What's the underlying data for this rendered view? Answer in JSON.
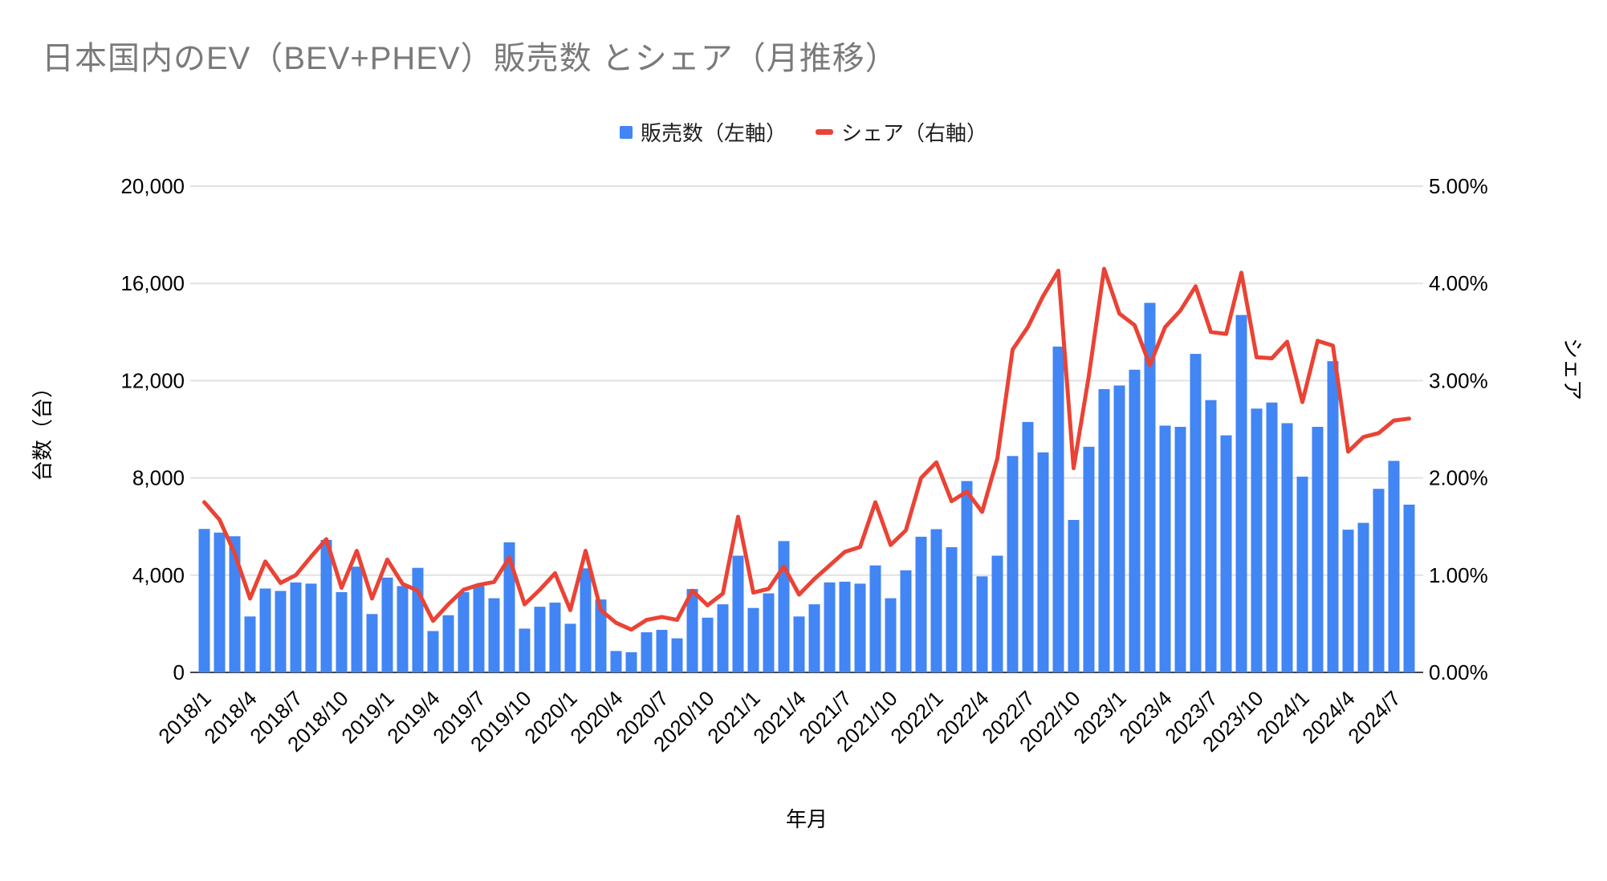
{
  "title": "日本国内のEV（BEV+PHEV）販売数 とシェア（月推移）",
  "legend": {
    "sales_label": "販売数（左軸）",
    "share_label": "シェア（右軸）"
  },
  "chart_data": {
    "type": "combo",
    "grid": true,
    "background": "#ffffff",
    "title": "日本国内のEV（BEV+PHEV）販売数 とシェア（月推移）",
    "x_axis": {
      "title": "年月",
      "tick_every": 3
    },
    "left_axis": {
      "title": "台数（台）",
      "min": 0,
      "max": 20000,
      "step": 4000,
      "ticks": [
        "0",
        "4,000",
        "8,000",
        "12,000",
        "16,000",
        "20,000"
      ]
    },
    "right_axis": {
      "title": "シェア",
      "min": 0,
      "max": 5,
      "step": 1,
      "ticks": [
        "0.00%",
        "1.00%",
        "2.00%",
        "3.00%",
        "4.00%",
        "5.00%"
      ]
    },
    "categories": [
      "2018/1",
      "2018/2",
      "2018/3",
      "2018/4",
      "2018/5",
      "2018/6",
      "2018/7",
      "2018/8",
      "2018/9",
      "2018/10",
      "2018/11",
      "2018/12",
      "2019/1",
      "2019/2",
      "2019/3",
      "2019/4",
      "2019/5",
      "2019/6",
      "2019/7",
      "2019/8",
      "2019/9",
      "2019/10",
      "2019/11",
      "2019/12",
      "2020/1",
      "2020/2",
      "2020/3",
      "2020/4",
      "2020/5",
      "2020/6",
      "2020/7",
      "2020/8",
      "2020/9",
      "2020/10",
      "2020/11",
      "2020/12",
      "2021/1",
      "2021/2",
      "2021/3",
      "2021/4",
      "2021/5",
      "2021/6",
      "2021/7",
      "2021/8",
      "2021/9",
      "2021/10",
      "2021/11",
      "2021/12",
      "2022/1",
      "2022/2",
      "2022/3",
      "2022/4",
      "2022/5",
      "2022/6",
      "2022/7",
      "2022/8",
      "2022/9",
      "2022/10",
      "2022/11",
      "2022/12",
      "2023/1",
      "2023/2",
      "2023/3",
      "2023/4",
      "2023/5",
      "2023/6",
      "2023/7",
      "2023/8",
      "2023/9",
      "2023/10",
      "2023/11",
      "2023/12",
      "2024/1",
      "2024/2",
      "2024/3",
      "2024/4",
      "2024/5",
      "2024/6",
      "2024/7",
      "2024/8"
    ],
    "series": [
      {
        "name": "販売数（左軸）",
        "type": "bar",
        "axis": "left",
        "color": "#4285f4",
        "values": [
          5900,
          5750,
          5600,
          2300,
          3450,
          3350,
          3700,
          3650,
          5450,
          3300,
          4350,
          2400,
          3900,
          3550,
          4300,
          1700,
          2350,
          3300,
          3550,
          3050,
          5350,
          1800,
          2700,
          2870,
          2000,
          4280,
          3000,
          880,
          830,
          1650,
          1750,
          1400,
          3430,
          2250,
          2800,
          4800,
          2650,
          3250,
          5400,
          2300,
          2800,
          3700,
          3730,
          3650,
          4400,
          3050,
          4200,
          5580,
          5890,
          5150,
          7870,
          3950,
          4800,
          8900,
          10300,
          9050,
          13400,
          6270,
          9280,
          11650,
          11800,
          12450,
          15200,
          10150,
          10100,
          13100,
          11200,
          9750,
          14700,
          10850,
          11100,
          10250,
          8050,
          10100,
          12800,
          5870,
          6150,
          7550,
          8700,
          6900
        ]
      },
      {
        "name": "シェア（右軸）",
        "type": "line",
        "axis": "right",
        "color": "#ea4335",
        "values": [
          1.75,
          1.57,
          1.22,
          0.76,
          1.14,
          0.92,
          1.0,
          1.19,
          1.37,
          0.87,
          1.25,
          0.76,
          1.16,
          0.91,
          0.84,
          0.53,
          0.7,
          0.85,
          0.9,
          0.93,
          1.18,
          0.7,
          0.85,
          1.02,
          0.64,
          1.25,
          0.64,
          0.51,
          0.44,
          0.54,
          0.57,
          0.54,
          0.84,
          0.69,
          0.81,
          1.6,
          0.82,
          0.86,
          1.09,
          0.8,
          0.96,
          1.1,
          1.24,
          1.29,
          1.75,
          1.31,
          1.46,
          2.0,
          2.16,
          1.76,
          1.86,
          1.65,
          2.2,
          3.32,
          3.55,
          3.87,
          4.13,
          2.1,
          3.05,
          4.15,
          3.69,
          3.57,
          3.16,
          3.55,
          3.72,
          3.97,
          3.5,
          3.48,
          4.11,
          3.24,
          3.23,
          3.4,
          2.78,
          3.41,
          3.36,
          2.27,
          2.42,
          2.46,
          2.59,
          2.61
        ]
      }
    ],
    "colors": {
      "bar": "#4285f4",
      "line": "#ea4335",
      "gridline": "#e2e2e2",
      "axis_line": "#454545",
      "title_text": "#7a7a7a",
      "tick_text": "#000000"
    }
  }
}
